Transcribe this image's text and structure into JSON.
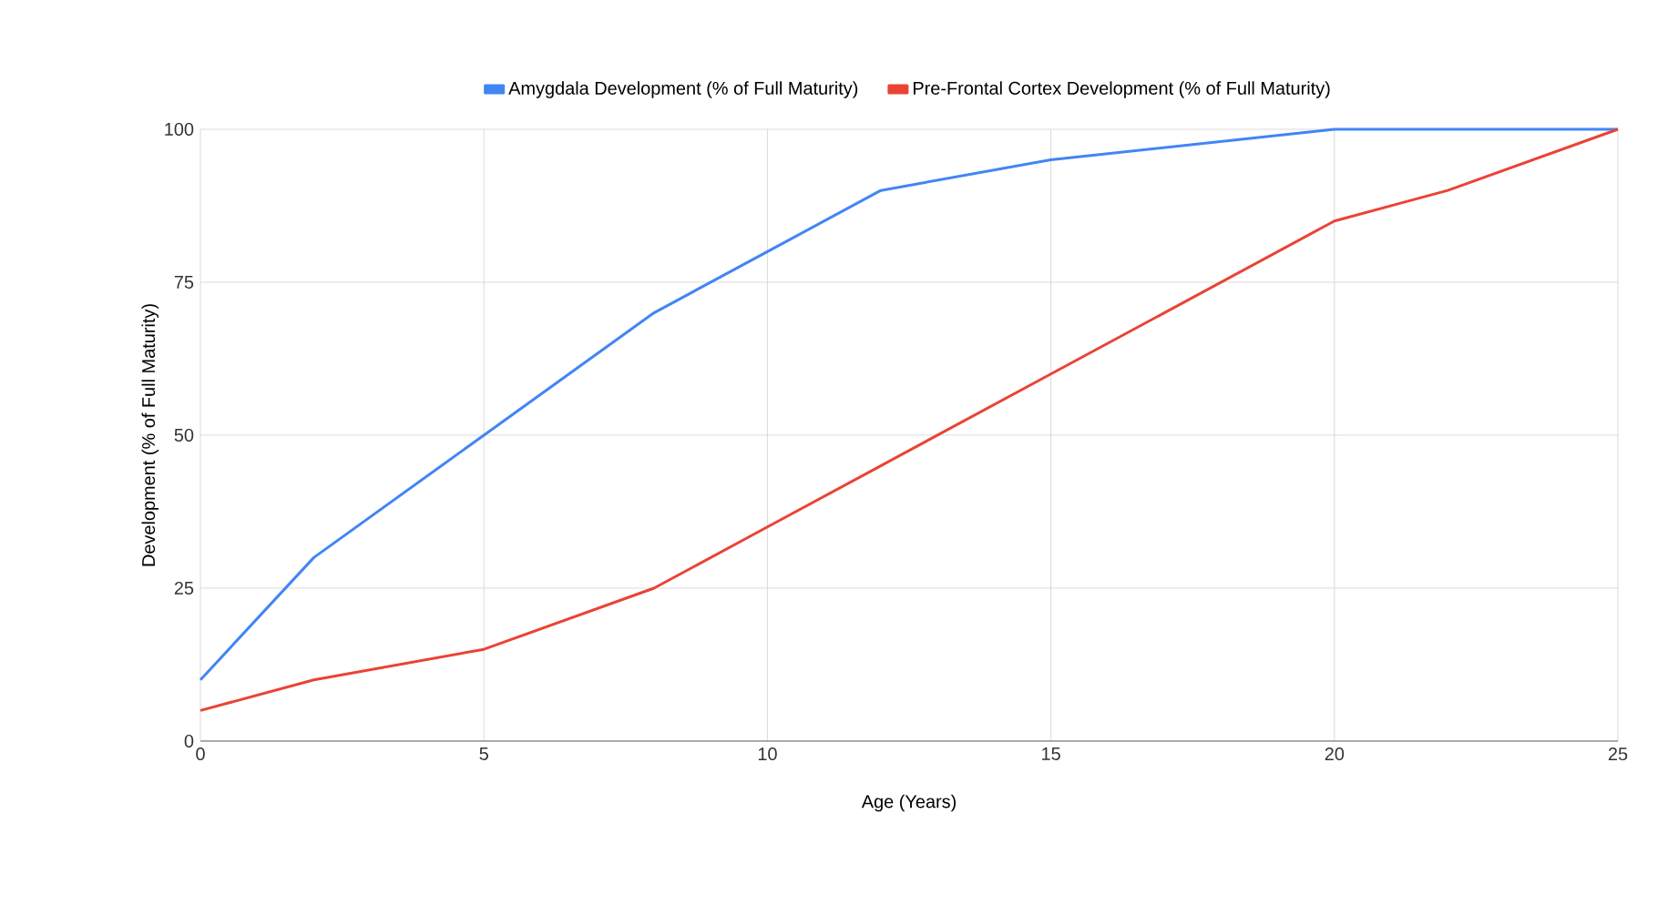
{
  "chart_data": {
    "type": "line",
    "xlabel": "Age (Years)",
    "ylabel": "Development (% of Full Maturity)",
    "xlim": [
      0,
      25
    ],
    "xticks": [
      0,
      5,
      10,
      15,
      20,
      25
    ],
    "ylim": [
      0,
      100
    ],
    "yticks": [
      0,
      25,
      50,
      75,
      100
    ],
    "grid": true,
    "legend": "top",
    "marker": "none",
    "line_style": "solid",
    "series": [
      {
        "name": "Amygdala Development (% of Full Maturity)",
        "color": "#4285f4",
        "x": [
          0,
          2,
          5,
          8,
          10,
          12,
          15,
          20,
          22,
          25
        ],
        "values": [
          10,
          30,
          50,
          70,
          80,
          90,
          95,
          100,
          100,
          100
        ]
      },
      {
        "name": "Pre-Frontal Cortex Development (% of Full Maturity)",
        "color": "#ea4335",
        "x": [
          0,
          2,
          5,
          8,
          10,
          12,
          15,
          20,
          22,
          25
        ],
        "values": [
          5,
          10,
          15,
          25,
          35,
          45,
          60,
          85,
          90,
          100
        ]
      }
    ]
  }
}
